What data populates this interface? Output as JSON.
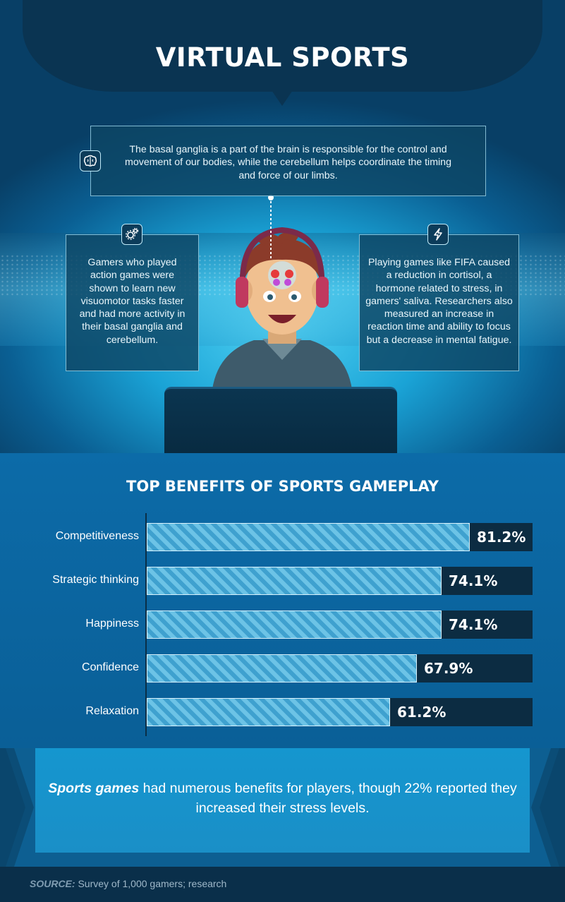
{
  "header": {
    "title": "VIRTUAL SPORTS"
  },
  "facts": {
    "top": "The basal ganglia is a part of the brain is responsible for the control and movement of our bodies, while the cerebellum helps coordinate the timing and force of our limbs.",
    "left": "Gamers who played action games were shown to learn new visuomotor tasks faster and had more activity in their basal ganglia and cerebellum.",
    "right": "Playing games like FIFA caused a reduction in cortisol, a hormone related to stress, in gamers' saliva. Researchers also measured an increase in reaction time and ability to focus but a decrease in mental fatigue.",
    "icons": [
      "brain-icon",
      "gears-icon",
      "lightning-icon"
    ]
  },
  "colors": {
    "bar_fill": "#6cc3e6",
    "bar_stripe": "#3fa1cf",
    "bar_track": "#0c2c42",
    "accent": "#1596cf"
  },
  "chart_data": {
    "type": "bar",
    "orientation": "horizontal",
    "title": "TOP BENEFITS OF SPORTS GAMEPLAY",
    "categories": [
      "Competitiveness",
      "Strategic thinking",
      "Happiness",
      "Confidence",
      "Relaxation"
    ],
    "values": [
      81.2,
      74.1,
      74.1,
      67.9,
      61.2
    ],
    "value_labels": [
      "81.2%",
      "74.1%",
      "74.1%",
      "67.9%",
      "61.2%"
    ],
    "xlim": [
      0,
      100
    ],
    "grid": false,
    "legend": "none"
  },
  "callout": {
    "bold": "Sports games",
    "rest": " had numerous benefits for players, though 22% reported they increased their stress levels."
  },
  "footer": {
    "source_label": "SOURCE:",
    "source_text": " Survey of 1,000 gamers; research"
  }
}
